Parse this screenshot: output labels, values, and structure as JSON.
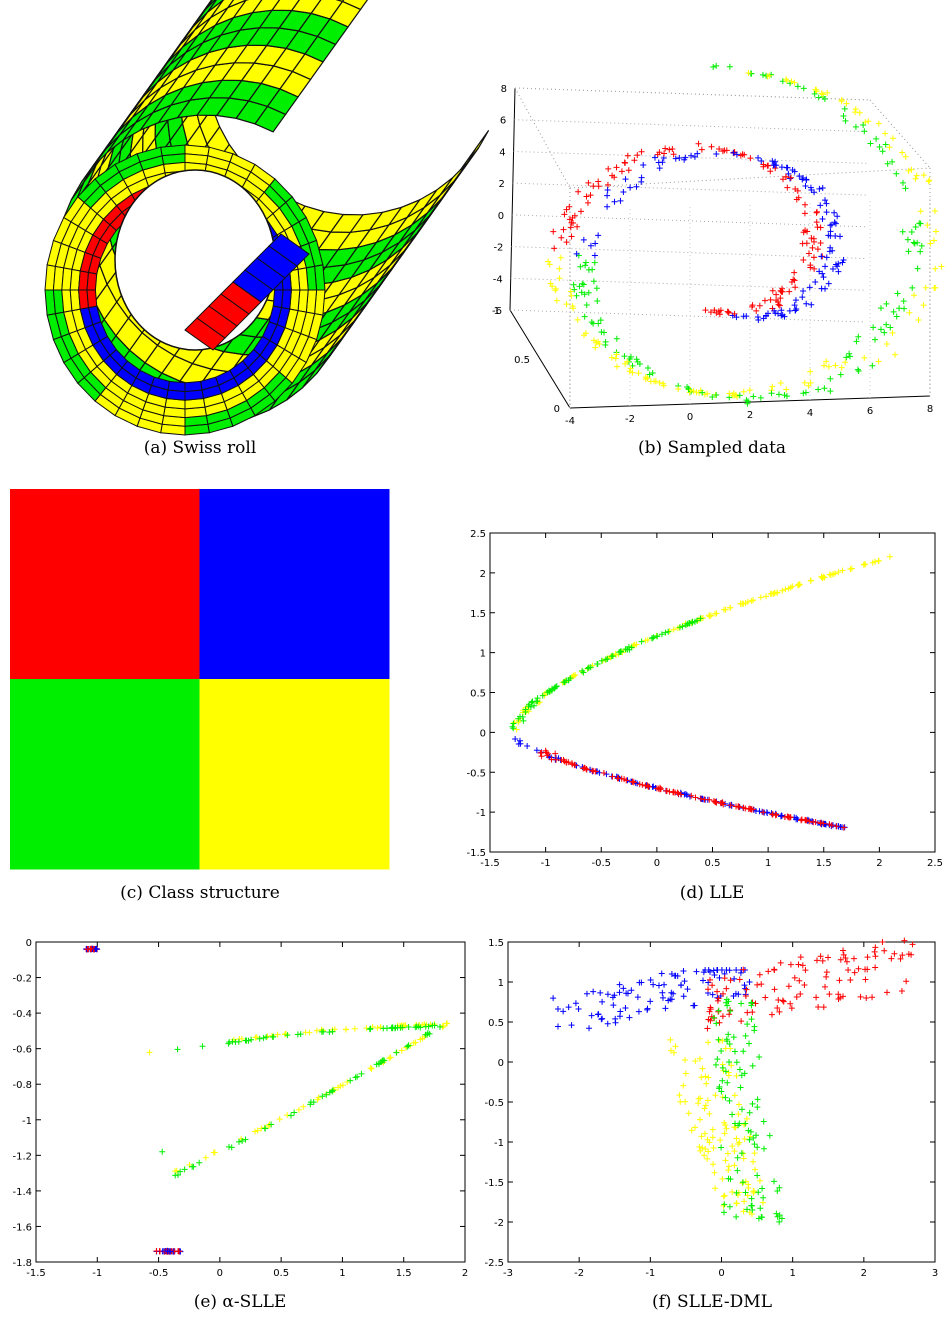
{
  "captions": {
    "a": "(a) Swiss roll",
    "b": "(b) Sampled data",
    "c": "(c) Class structure",
    "d": "(d) LLE",
    "e": "(e) α-SLLE",
    "f": "(f) SLLE-DML"
  },
  "colors": {
    "red": "#ff0000",
    "blue": "#0000ff",
    "green": "#00ee00",
    "yellow": "#ffff00"
  },
  "chart_data": [
    {
      "id": "a",
      "type": "other",
      "description_classes": [
        "red",
        "blue",
        "green",
        "yellow"
      ]
    },
    {
      "id": "b",
      "type": "scatter",
      "xlim": [
        -4,
        8
      ],
      "ylim": [
        0,
        1
      ],
      "zlim": [
        -6,
        8
      ],
      "xticks": [
        "-4",
        "-2",
        "0",
        "2",
        "4",
        "6",
        "8"
      ],
      "yticks": [
        "0",
        "0.5",
        "1"
      ],
      "zticks": [
        "-6",
        "-4",
        "-2",
        "0",
        "2",
        "4",
        "6",
        "8"
      ],
      "series": [
        {
          "color": "blue"
        },
        {
          "color": "red"
        },
        {
          "color": "green"
        },
        {
          "color": "yellow"
        }
      ]
    },
    {
      "id": "c",
      "type": "heatmap",
      "cells": [
        [
          "red",
          "blue"
        ],
        [
          "green",
          "yellow"
        ]
      ]
    },
    {
      "id": "d",
      "type": "scatter",
      "xlim": [
        -1.5,
        2.5
      ],
      "ylim": [
        -1.5,
        2.5
      ],
      "xticks": [
        "-1.5",
        "-1",
        "-0.5",
        "0",
        "0.5",
        "1",
        "1.5",
        "2",
        "2.5"
      ],
      "yticks": [
        "-1.5",
        "-1",
        "-0.5",
        "0",
        "0.5",
        "1",
        "1.5",
        "2",
        "2.5"
      ],
      "series": [
        {
          "color": "yellow",
          "curve": "upper",
          "t": [
            0.0,
            1.0
          ]
        },
        {
          "color": "green",
          "curve": "upper",
          "t": [
            0.0,
            0.55
          ]
        },
        {
          "color": "blue",
          "curve": "lower",
          "t": [
            0.0,
            1.0
          ]
        },
        {
          "color": "red",
          "curve": "lower",
          "t": [
            0.05,
            1.0
          ]
        }
      ]
    },
    {
      "id": "e",
      "type": "scatter",
      "xlim": [
        -1.5,
        2
      ],
      "ylim": [
        -1.8,
        0
      ],
      "xticks": [
        "-1.5",
        "-1",
        "-0.5",
        "0",
        "0.5",
        "1",
        "1.5",
        "2"
      ],
      "yticks": [
        "-1.8",
        "-1.6",
        "-1.4",
        "-1.2",
        "-1",
        "-0.8",
        "-0.6",
        "-0.4",
        "-0.2",
        "0"
      ],
      "segments": [
        {
          "color": "yellow",
          "from": [
            -0.7,
            -0.63
          ],
          "to": [
            1.85,
            -0.46
          ]
        },
        {
          "color": "green",
          "from": [
            -0.65,
            -0.64
          ],
          "to": [
            1.8,
            -0.47
          ]
        },
        {
          "color": "yellow",
          "from": [
            -0.45,
            -1.32
          ],
          "to": [
            1.85,
            -0.46
          ]
        },
        {
          "color": "green",
          "from": [
            -0.45,
            -1.34
          ],
          "to": [
            1.8,
            -0.47
          ]
        }
      ],
      "clusters": [
        {
          "colors": [
            "red",
            "blue"
          ],
          "x": [
            -1.09,
            -1.0
          ],
          "y": -0.04
        },
        {
          "colors": [
            "red",
            "blue"
          ],
          "x": [
            -0.52,
            -0.32
          ],
          "y": -1.74
        }
      ]
    },
    {
      "id": "f",
      "type": "scatter",
      "xlim": [
        -3,
        3
      ],
      "ylim": [
        -2.5,
        1.5
      ],
      "xticks": [
        "-3",
        "-2",
        "-1",
        "0",
        "1",
        "2",
        "3"
      ],
      "yticks": [
        "-2.5",
        "-2",
        "-1.5",
        "-1",
        "-0.5",
        "0",
        "0.5",
        "1",
        "1.5"
      ],
      "series": [
        {
          "color": "blue"
        },
        {
          "color": "red"
        },
        {
          "color": "yellow"
        },
        {
          "color": "green"
        }
      ]
    }
  ]
}
